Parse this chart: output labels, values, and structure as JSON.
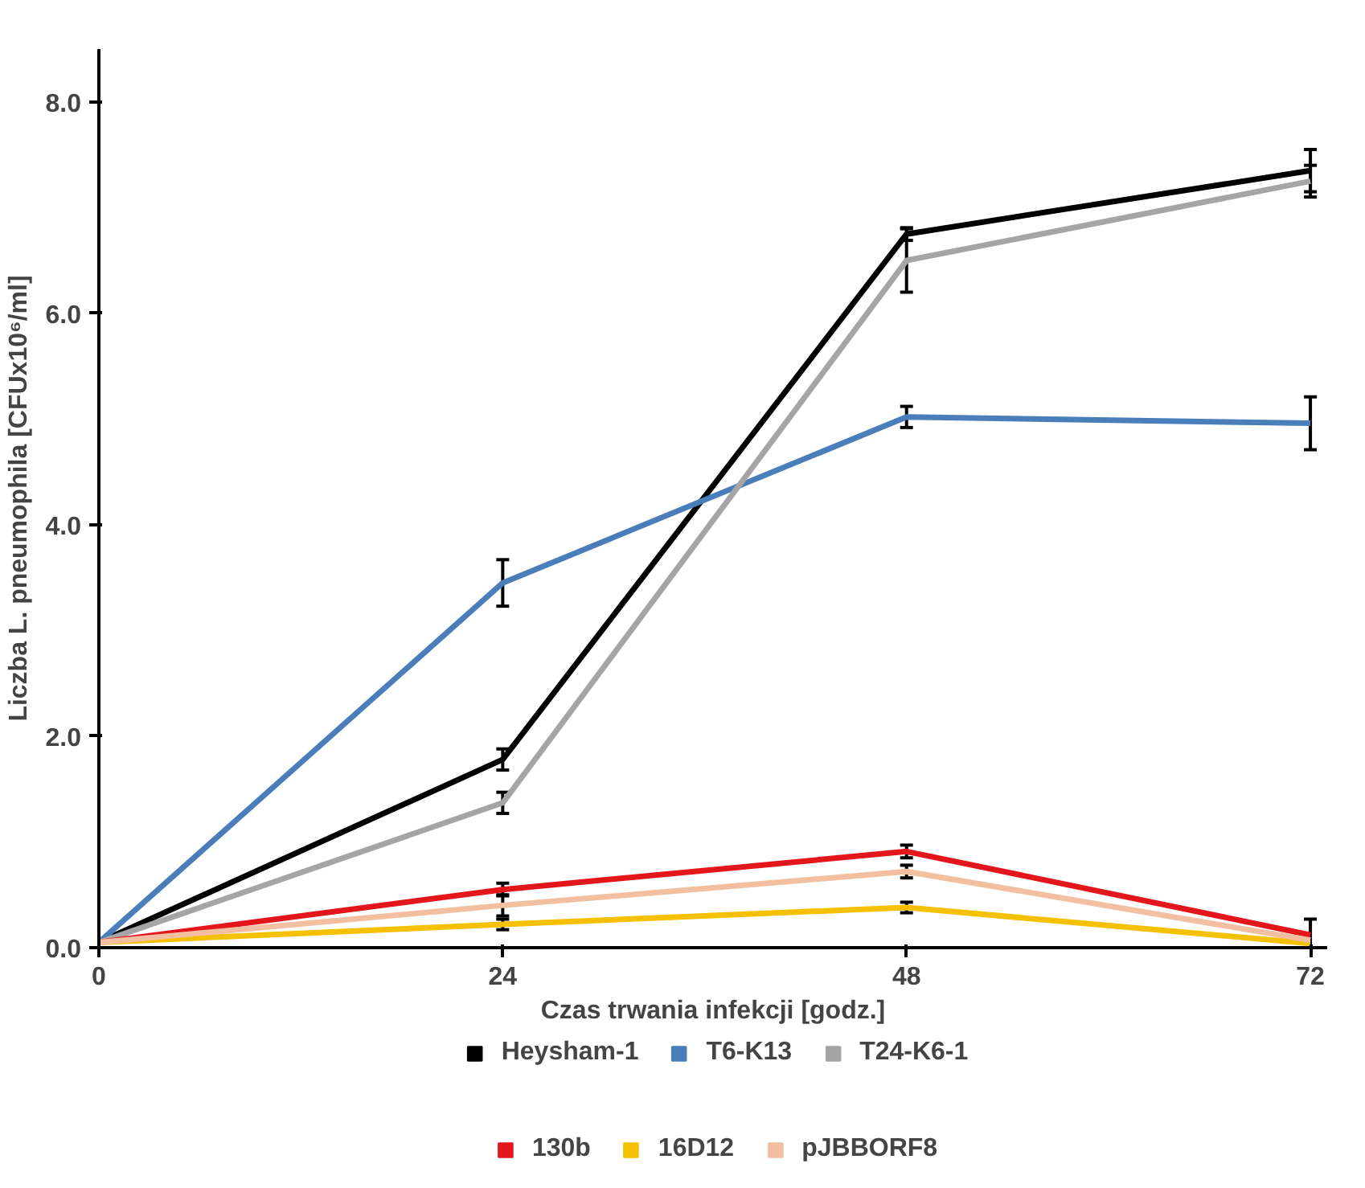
{
  "chart_data": {
    "type": "line",
    "xlabel": "Czas trwania infekcji [godz.]",
    "ylabel": "Liczba L. pneumophila [CFUx10⁶/ml]",
    "x": [
      0,
      24,
      48,
      72
    ],
    "xlim": [
      0,
      73
    ],
    "xticks": [
      0,
      24,
      48,
      72
    ],
    "ylim": [
      0,
      8.5
    ],
    "yticks": [
      {
        "value": 0,
        "label": "0.0"
      },
      {
        "value": 2,
        "label": "2.0"
      },
      {
        "value": 4,
        "label": "4.0"
      },
      {
        "value": 6,
        "label": "6.0"
      },
      {
        "value": 8,
        "label": "8.0"
      }
    ],
    "grid": false,
    "legend": "bottom",
    "marker": "none",
    "line_style": "solid",
    "series": [
      {
        "name": "Heysham-1",
        "color": "#000000",
        "values": [
          0.05,
          1.78,
          6.75,
          7.35
        ],
        "errors": [
          null,
          0.1,
          0.06,
          0.2
        ]
      },
      {
        "name": "T6-K13",
        "color": "#4a7ebb",
        "values": [
          0.05,
          3.45,
          5.02,
          4.96
        ],
        "errors": [
          null,
          0.22,
          0.1,
          0.25
        ]
      },
      {
        "name": "T24-K6-1",
        "color": "#a5a5a5",
        "values": [
          0.05,
          1.37,
          6.5,
          7.25
        ],
        "errors": [
          null,
          0.1,
          0.3,
          0.15
        ]
      },
      {
        "name": "130b",
        "color": "#e3161b",
        "values": [
          0.05,
          0.55,
          0.91,
          0.12
        ],
        "errors": [
          null,
          0.06,
          0.06,
          0.15
        ]
      },
      {
        "name": "16D12",
        "color": "#f5c000",
        "values": [
          0.05,
          0.22,
          0.38,
          0.04
        ],
        "errors": [
          null,
          0.05,
          0.05,
          null
        ]
      },
      {
        "name": "pJBBORF8",
        "color": "#f2bfa0",
        "values": [
          0.05,
          0.4,
          0.72,
          0.07
        ],
        "errors": [
          null,
          0.1,
          0.06,
          null
        ]
      }
    ]
  }
}
